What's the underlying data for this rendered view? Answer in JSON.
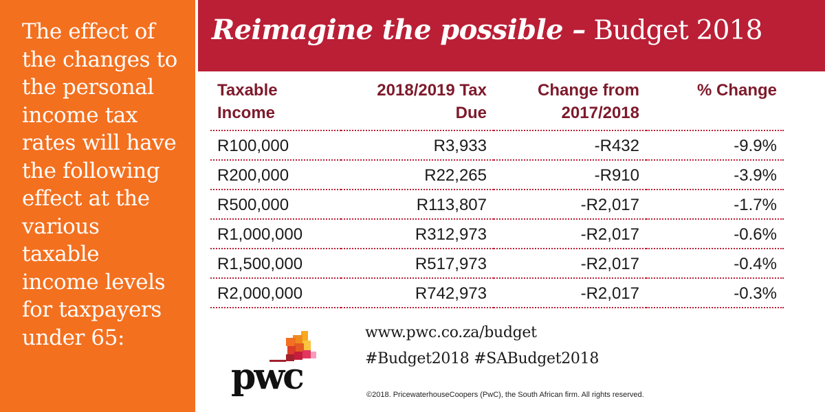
{
  "intro": {
    "lines": [
      "The effect of",
      "the changes to",
      "the personal",
      "income tax",
      "rates will have",
      "the following",
      "effect at the",
      "various taxable",
      "income levels",
      "for taxpayers",
      "under 65:"
    ]
  },
  "header": {
    "title_emphasis": "Reimagine the possible –",
    "title_rest": " Budget 2018"
  },
  "table": {
    "headers": [
      [
        "Taxable",
        "Income"
      ],
      [
        "2018/2019 Tax",
        "Due"
      ],
      [
        "Change from",
        "2017/2018"
      ],
      [
        "% Change",
        ""
      ]
    ],
    "rows": [
      [
        "R100,000",
        "R3,933",
        "-R432",
        "-9.9%"
      ],
      [
        "R200,000",
        "R22,265",
        "-R910",
        "-3.9%"
      ],
      [
        "R500,000",
        "R113,807",
        "-R2,017",
        "-1.7%"
      ],
      [
        "R1,000,000",
        "R312,973",
        "-R2,017",
        "-0.6%"
      ],
      [
        "R1,500,000",
        "R517,973",
        "-R2,017",
        "-0.4%"
      ],
      [
        "R2,000,000",
        "R742,973",
        "-R2,017",
        "-0.3%"
      ]
    ]
  },
  "links": {
    "url": "www.pwc.co.za/budget",
    "hashtags": "#Budget2018 #SABudget2018"
  },
  "copyright": "©2018. PricewaterhouseCoopers (PwC), the South African firm. All rights reserved.",
  "logo": {
    "wordmark": "pwc"
  },
  "colors": {
    "orange": "#f3701f",
    "crimson": "#ba1f36",
    "header_text": "#7d1a2b"
  }
}
